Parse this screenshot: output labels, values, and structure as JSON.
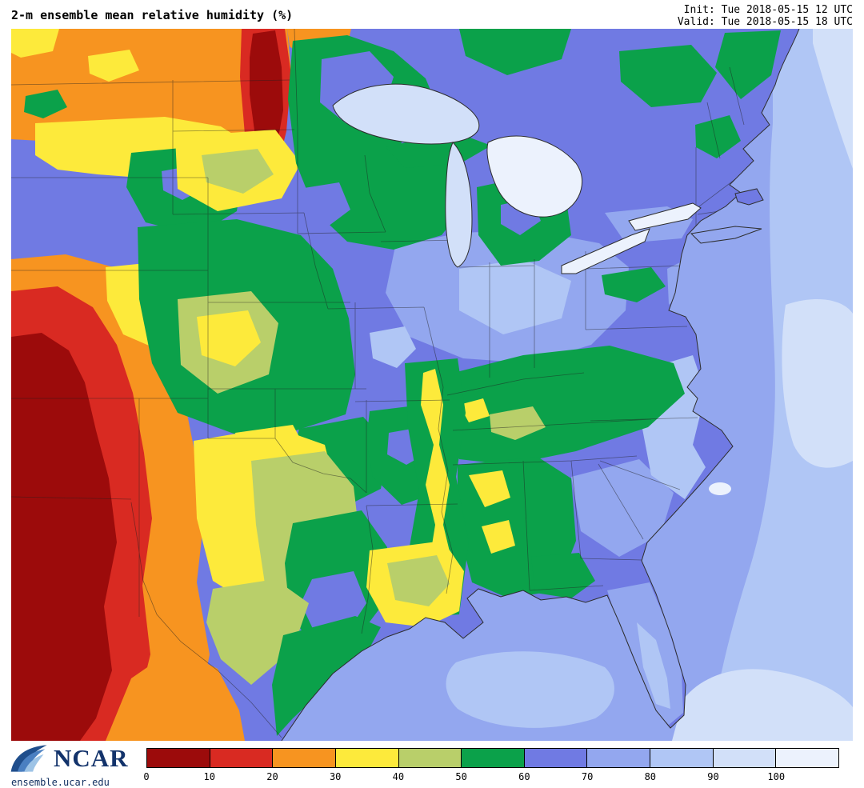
{
  "header": {
    "title": "2-m ensemble mean relative humidity (%)",
    "init_label": "Init: Tue 2018-05-15 12 UTC",
    "valid_label": "Valid: Tue 2018-05-15 18 UTC"
  },
  "branding": {
    "org": "NCAR",
    "url": "ensemble.ucar.edu",
    "logo_color": "#13336b",
    "wave_colors": [
      "#1f4e8c",
      "#4a7fc1",
      "#9dc3e6"
    ]
  },
  "chart_data": {
    "type": "heatmap",
    "title": "2-m ensemble mean relative humidity (%)",
    "variable": "2-m ensemble mean relative humidity",
    "units": "%",
    "init_time": "Tue 2018-05-15 12 UTC",
    "valid_time": "Tue 2018-05-15 18 UTC",
    "region": "Central and eastern United States, Great Lakes, Gulf of Mexico and western Atlantic",
    "colorbar": {
      "orientation": "horizontal",
      "tick_labels": [
        "0",
        "10",
        "20",
        "30",
        "40",
        "50",
        "60",
        "70",
        "80",
        "90",
        "100"
      ],
      "colors": [
        "#9c0b0b",
        "#d92a22",
        "#f79420",
        "#fdea3b",
        "#b9cf6a",
        "#0ba14a",
        "#707ae3",
        "#93a7ef",
        "#b0c6f5",
        "#d2e0f9",
        "#ecf2fd"
      ]
    },
    "regions": [
      {
        "area": "New Mexico and far west Texas",
        "rh_pct": "0-15"
      },
      {
        "area": "Eastern Montana / western Dakotas streak",
        "rh_pct": "5-25"
      },
      {
        "area": "Colorado and western Kansas",
        "rh_pct": "20-40"
      },
      {
        "area": "Central and south Texas",
        "rh_pct": "30-50"
      },
      {
        "area": "Nebraska / Kansas / Oklahoma",
        "rh_pct": "40-60"
      },
      {
        "area": "Minnesota / Wisconsin / Michigan",
        "rh_pct": "50-70"
      },
      {
        "area": "Lower Mississippi Valley corridor",
        "rh_pct": "35-55"
      },
      {
        "area": "Kentucky / Tennessee / Appalachians",
        "rh_pct": "50-60"
      },
      {
        "area": "Iowa / Missouri / Ohio Valley",
        "rh_pct": "60-85"
      },
      {
        "area": "Northeast and Mid-Atlantic",
        "rh_pct": "60-90"
      },
      {
        "area": "Southeast coastal plain and Florida",
        "rh_pct": "70-90"
      },
      {
        "area": "Gulf of Mexico and Atlantic offshore",
        "rh_pct": "70-100"
      }
    ]
  }
}
